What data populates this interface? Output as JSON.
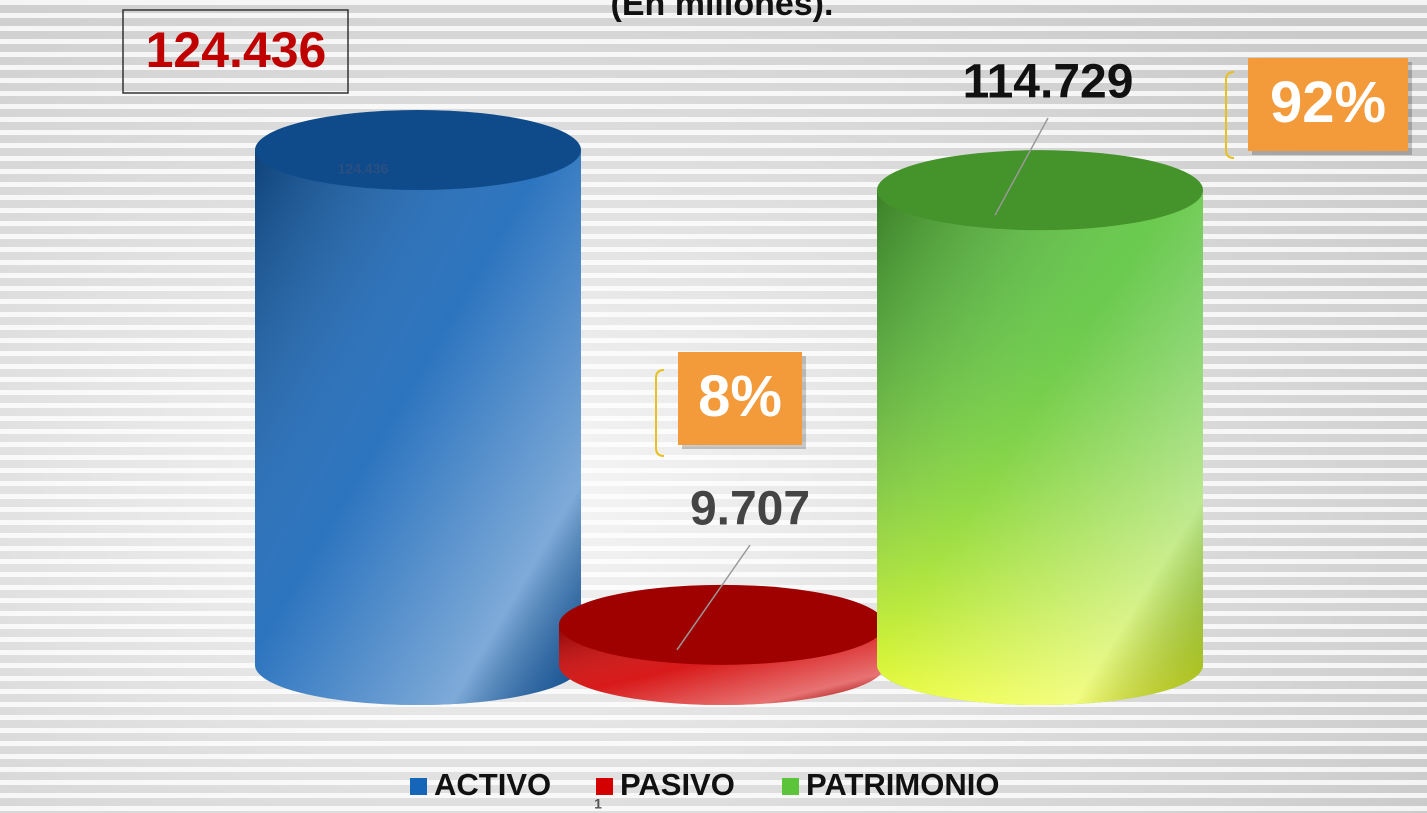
{
  "chart_data": {
    "type": "cylinder-bar",
    "subtitle": "(En millones).",
    "categories": [
      "ACTIVO",
      "PASIVO",
      "PATRIMONIO"
    ],
    "values": [
      124436,
      9707,
      114729
    ],
    "value_labels": [
      "124.436",
      "9.707",
      "114.729"
    ],
    "colors": [
      "#1565b8",
      "#d40000",
      "#5cc43a"
    ],
    "annotations": [
      {
        "text": "8%",
        "value": 8
      },
      {
        "text": "92%",
        "value": 92
      }
    ],
    "page_number": "1"
  }
}
